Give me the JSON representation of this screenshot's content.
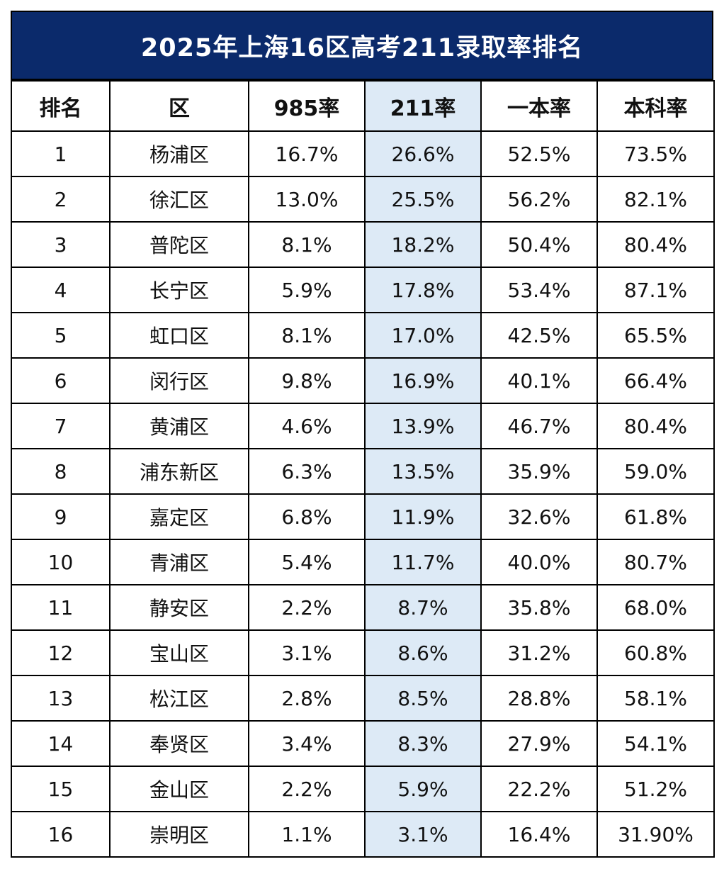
{
  "title": "2025年上海16区高考211录取率排名",
  "accent_color": "#0b2a6b",
  "highlight_column_color": "#ddeaf6",
  "headers": [
    "排名",
    "区",
    "985率",
    "211率",
    "一本率",
    "本科率"
  ],
  "rows": [
    [
      "1",
      "杨浦区",
      "16.7%",
      "26.6%",
      "52.5%",
      "73.5%"
    ],
    [
      "2",
      "徐汇区",
      "13.0%",
      "25.5%",
      "56.2%",
      "82.1%"
    ],
    [
      "3",
      "普陀区",
      "8.1%",
      "18.2%",
      "50.4%",
      "80.4%"
    ],
    [
      "4",
      "长宁区",
      "5.9%",
      "17.8%",
      "53.4%",
      "87.1%"
    ],
    [
      "5",
      "虹口区",
      "8.1%",
      "17.0%",
      "42.5%",
      "65.5%"
    ],
    [
      "6",
      "闵行区",
      "9.8%",
      "16.9%",
      "40.1%",
      "66.4%"
    ],
    [
      "7",
      "黄浦区",
      "4.6%",
      "13.9%",
      "46.7%",
      "80.4%"
    ],
    [
      "8",
      "浦东新区",
      "6.3%",
      "13.5%",
      "35.9%",
      "59.0%"
    ],
    [
      "9",
      "嘉定区",
      "6.8%",
      "11.9%",
      "32.6%",
      "61.8%"
    ],
    [
      "10",
      "青浦区",
      "5.4%",
      "11.7%",
      "40.0%",
      "80.7%"
    ],
    [
      "11",
      "静安区",
      "2.2%",
      "8.7%",
      "35.8%",
      "68.0%"
    ],
    [
      "12",
      "宝山区",
      "3.1%",
      "8.6%",
      "31.2%",
      "60.8%"
    ],
    [
      "13",
      "松江区",
      "2.8%",
      "8.5%",
      "28.8%",
      "58.1%"
    ],
    [
      "14",
      "奉贤区",
      "3.4%",
      "8.3%",
      "27.9%",
      "54.1%"
    ],
    [
      "15",
      "金山区",
      "2.2%",
      "5.9%",
      "22.2%",
      "51.2%"
    ],
    [
      "16",
      "崇明区",
      "1.1%",
      "3.1%",
      "16.4%",
      "31.90%"
    ]
  ]
}
